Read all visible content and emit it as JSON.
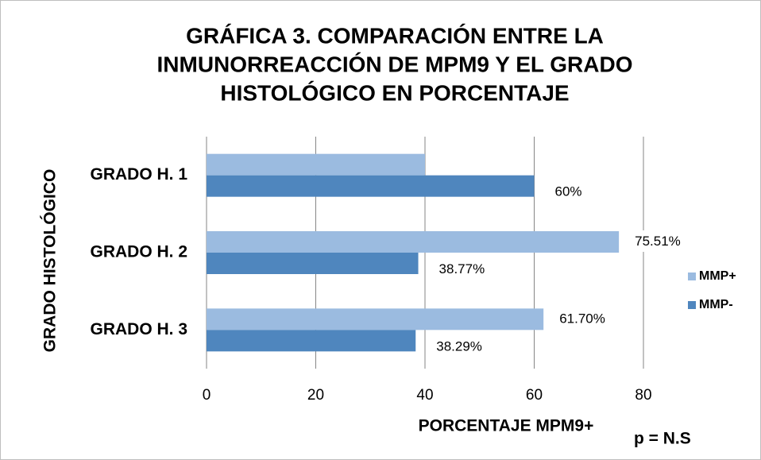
{
  "chart_data": {
    "type": "hbar",
    "title": [
      "GRÁFICA 3. COMPARACIÓN ENTRE LA",
      "INMUNORREACCIÓN DE MPM9 Y EL GRADO",
      "HISTOLÓGICO EN PORCENTAJE"
    ],
    "x_label": "PORCENTAJE MPM9+",
    "y_label": "GRADO HISTOLÓGICO",
    "annotation": "p = N.S",
    "categories": [
      "GRADO H. 1",
      "GRADO H. 2",
      "GRADO H. 3"
    ],
    "series": [
      {
        "name": "MMP+",
        "color": "#9bbbe0",
        "values": [
          40,
          75.51,
          61.7
        ],
        "value_labels": [
          null,
          "75.51%",
          "61.70%"
        ]
      },
      {
        "name": "MMP-",
        "color": "#4f86be",
        "values": [
          60,
          38.77,
          38.29
        ],
        "value_labels": [
          "60%",
          "38.77%",
          "38.29%"
        ]
      }
    ],
    "xlim": [
      0,
      80
    ],
    "xticks": [
      0,
      20,
      40,
      60,
      80
    ],
    "grid": true,
    "legend": "right"
  }
}
